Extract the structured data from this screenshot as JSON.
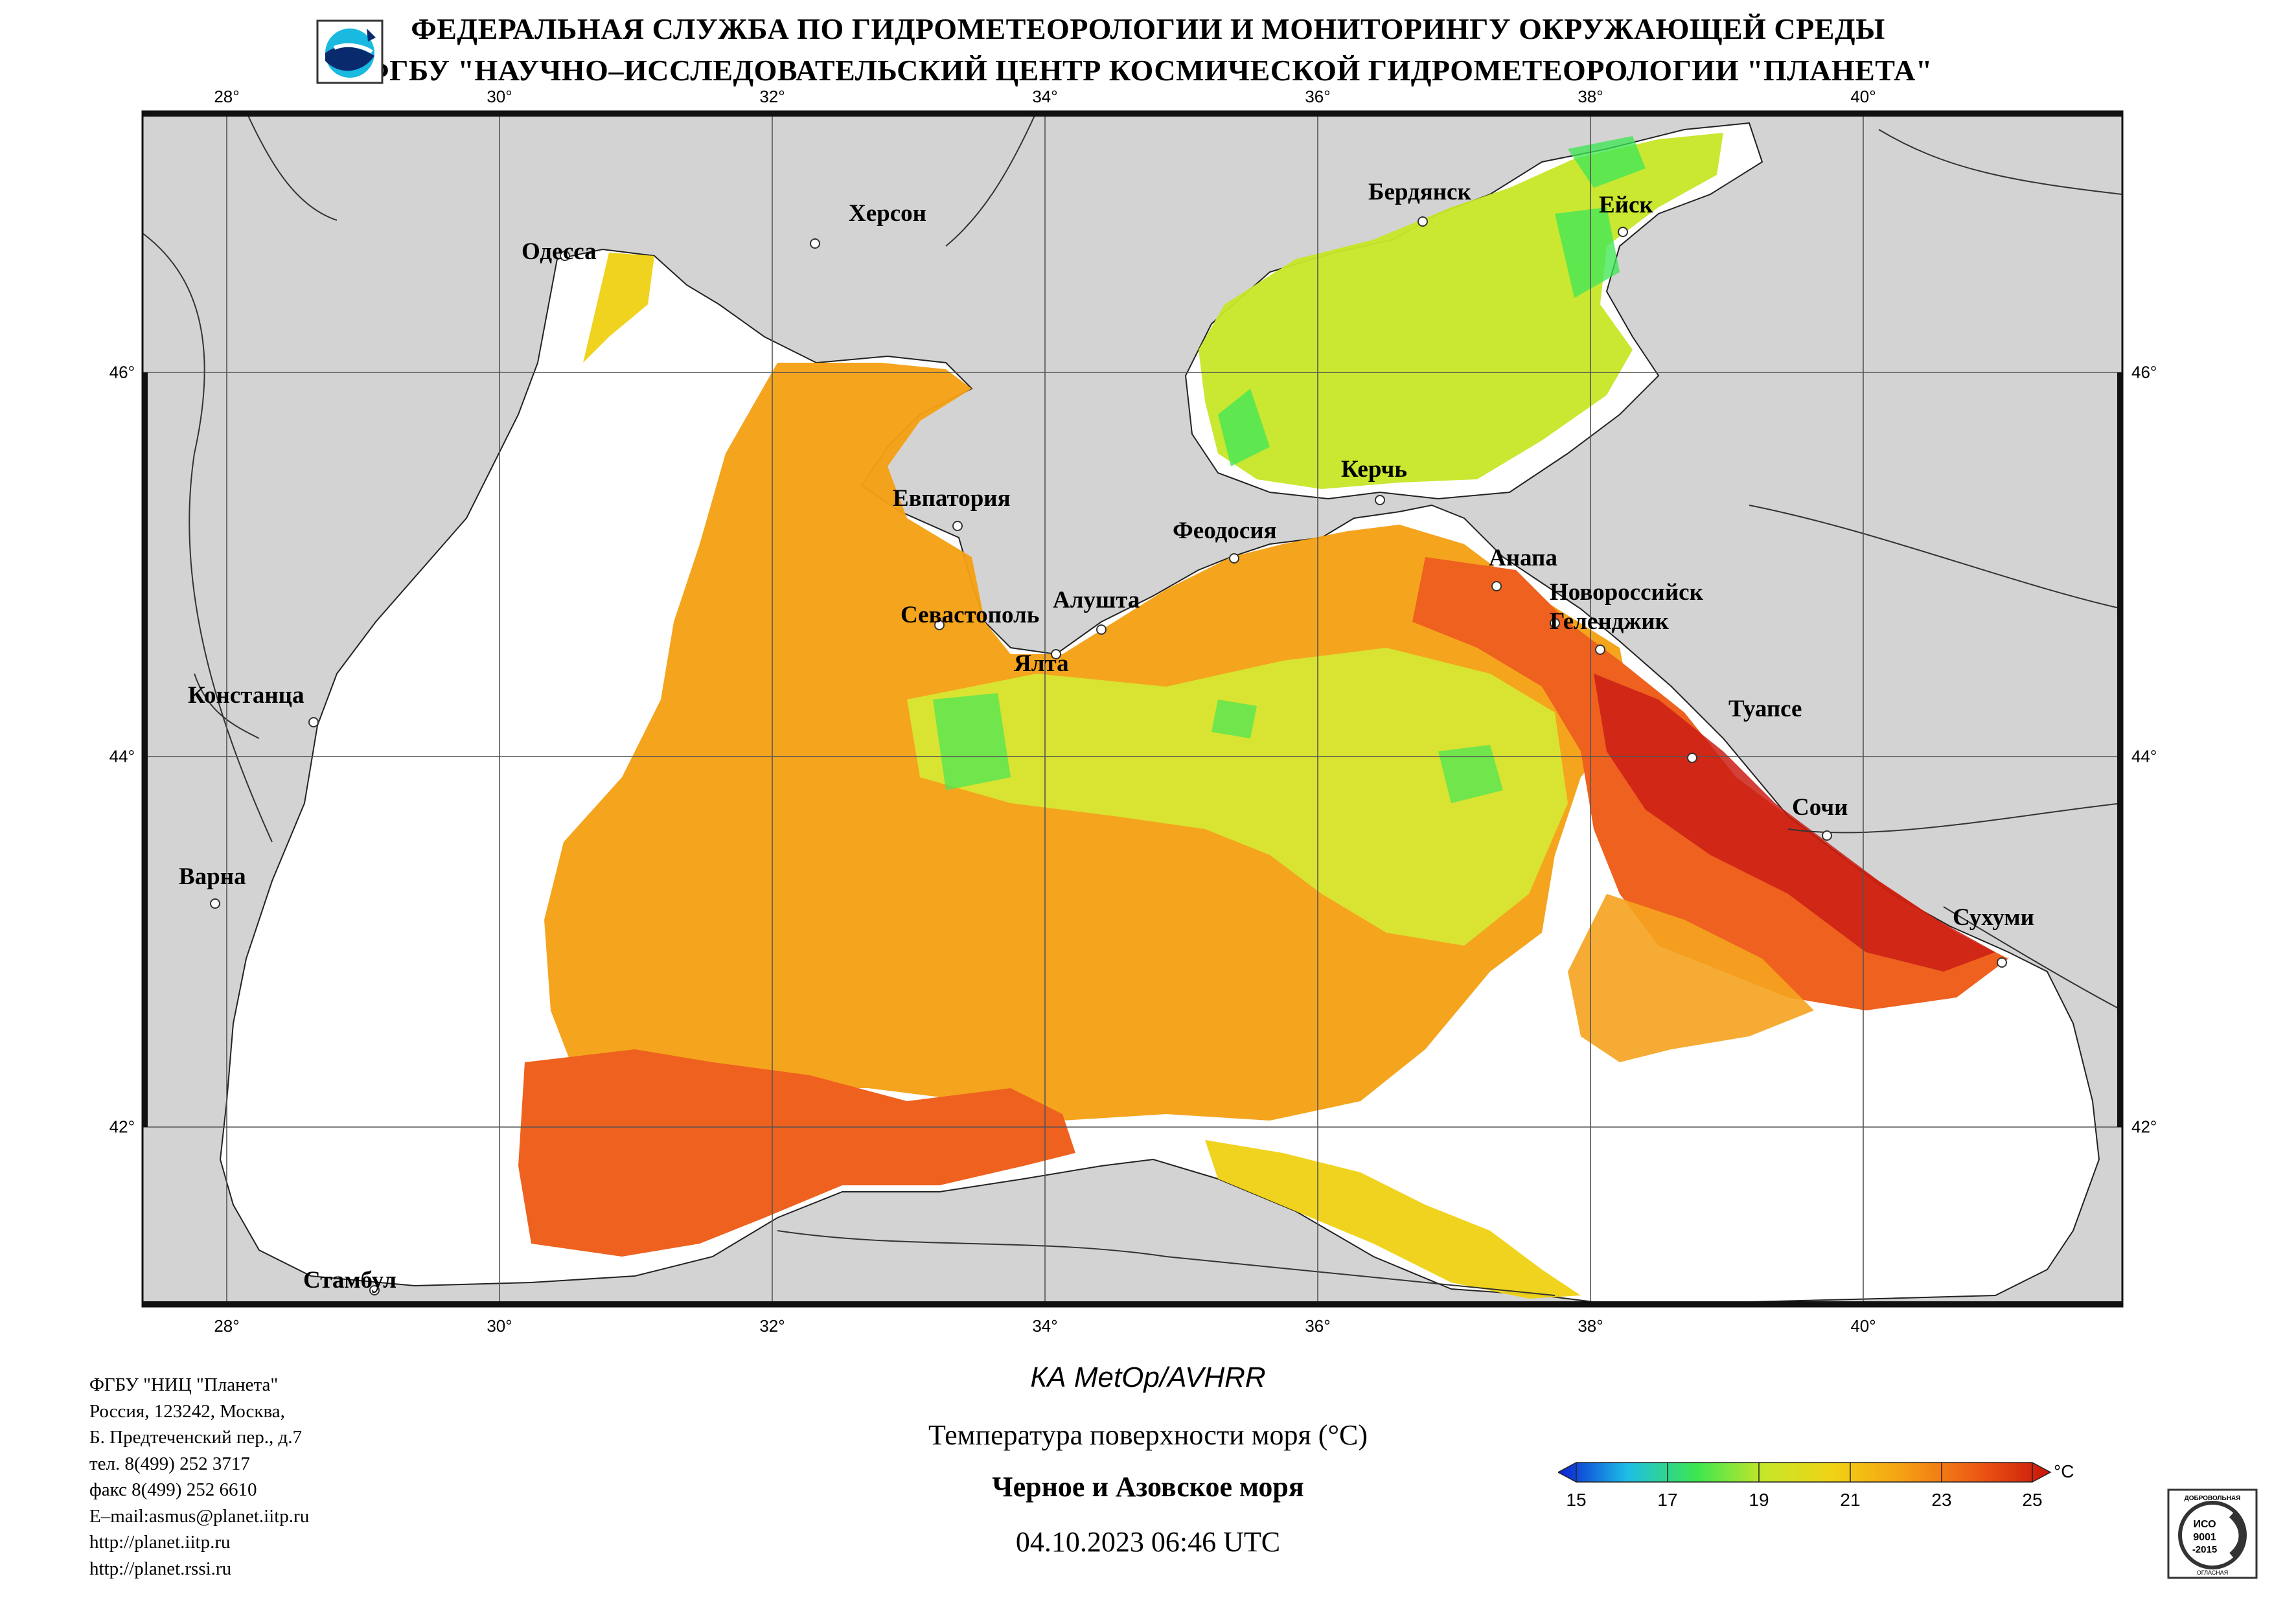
{
  "header": {
    "line1": "ФЕДЕРАЛЬНАЯ СЛУЖБА ПО ГИДРОМЕТЕОРОЛОГИИ И МОНИТОРИНГУ ОКРУЖАЮЩЕЙ СРЕДЫ",
    "line2": "ФГБУ \"НАУЧНО–ИССЛЕДОВАТЕЛЬСКИЙ ЦЕНТР КОСМИЧЕСКОЙ ГИДРОМЕТЕОРОЛОГИИ \"ПЛАНЕТА\""
  },
  "map": {
    "lon_labels": [
      "28°",
      "30°",
      "32°",
      "34°",
      "36°",
      "38°",
      "40°"
    ],
    "lat_labels": [
      "46°",
      "44°",
      "42°"
    ],
    "cities": [
      "Херсон",
      "Одесса",
      "Бердянск",
      "Ейск",
      "Евпатория",
      "Керчь",
      "Феодосия",
      "Анапа",
      "Новороссийск",
      "Геленджик",
      "Севастополь",
      "Алушта",
      "Ялта",
      "Туапсе",
      "Констанца",
      "Сочи",
      "Варна",
      "Сухуми",
      "Стамбул"
    ]
  },
  "satellite": "КА MetOp/AVHRR",
  "parameter": "Температура поверхности моря (°С)",
  "region": "Черное и Азовское моря",
  "datetime": "04.10.2023 06:46 UTC",
  "org_info": [
    "ФГБУ \"НИЦ \"Планета\"",
    "Россия, 123242, Москва,",
    "Б. Предтеченский пер., д.7",
    "тел. 8(499) 252 3717",
    "факс 8(499) 252 6610",
    "E–mail:asmus@planet.iitp.ru",
    "http://planet.iitp.ru",
    "http://planet.rssi.ru"
  ],
  "colorbar": {
    "ticks": [
      "15",
      "17",
      "19",
      "21",
      "23",
      "25"
    ],
    "unit": "°C",
    "range": [
      15,
      25
    ],
    "colors": [
      "#0a1ed2",
      "#1ebee6",
      "#3ce650",
      "#c8e628",
      "#f0d214",
      "#f5a014",
      "#ee5a14",
      "#c8140a"
    ]
  },
  "certification": {
    "text": [
      "ДОБРОВОЛЬНАЯ",
      "ИСО",
      "9001",
      "-2015",
      "ГОСТ Р",
      "ОГЛАСНАЯ"
    ]
  }
}
